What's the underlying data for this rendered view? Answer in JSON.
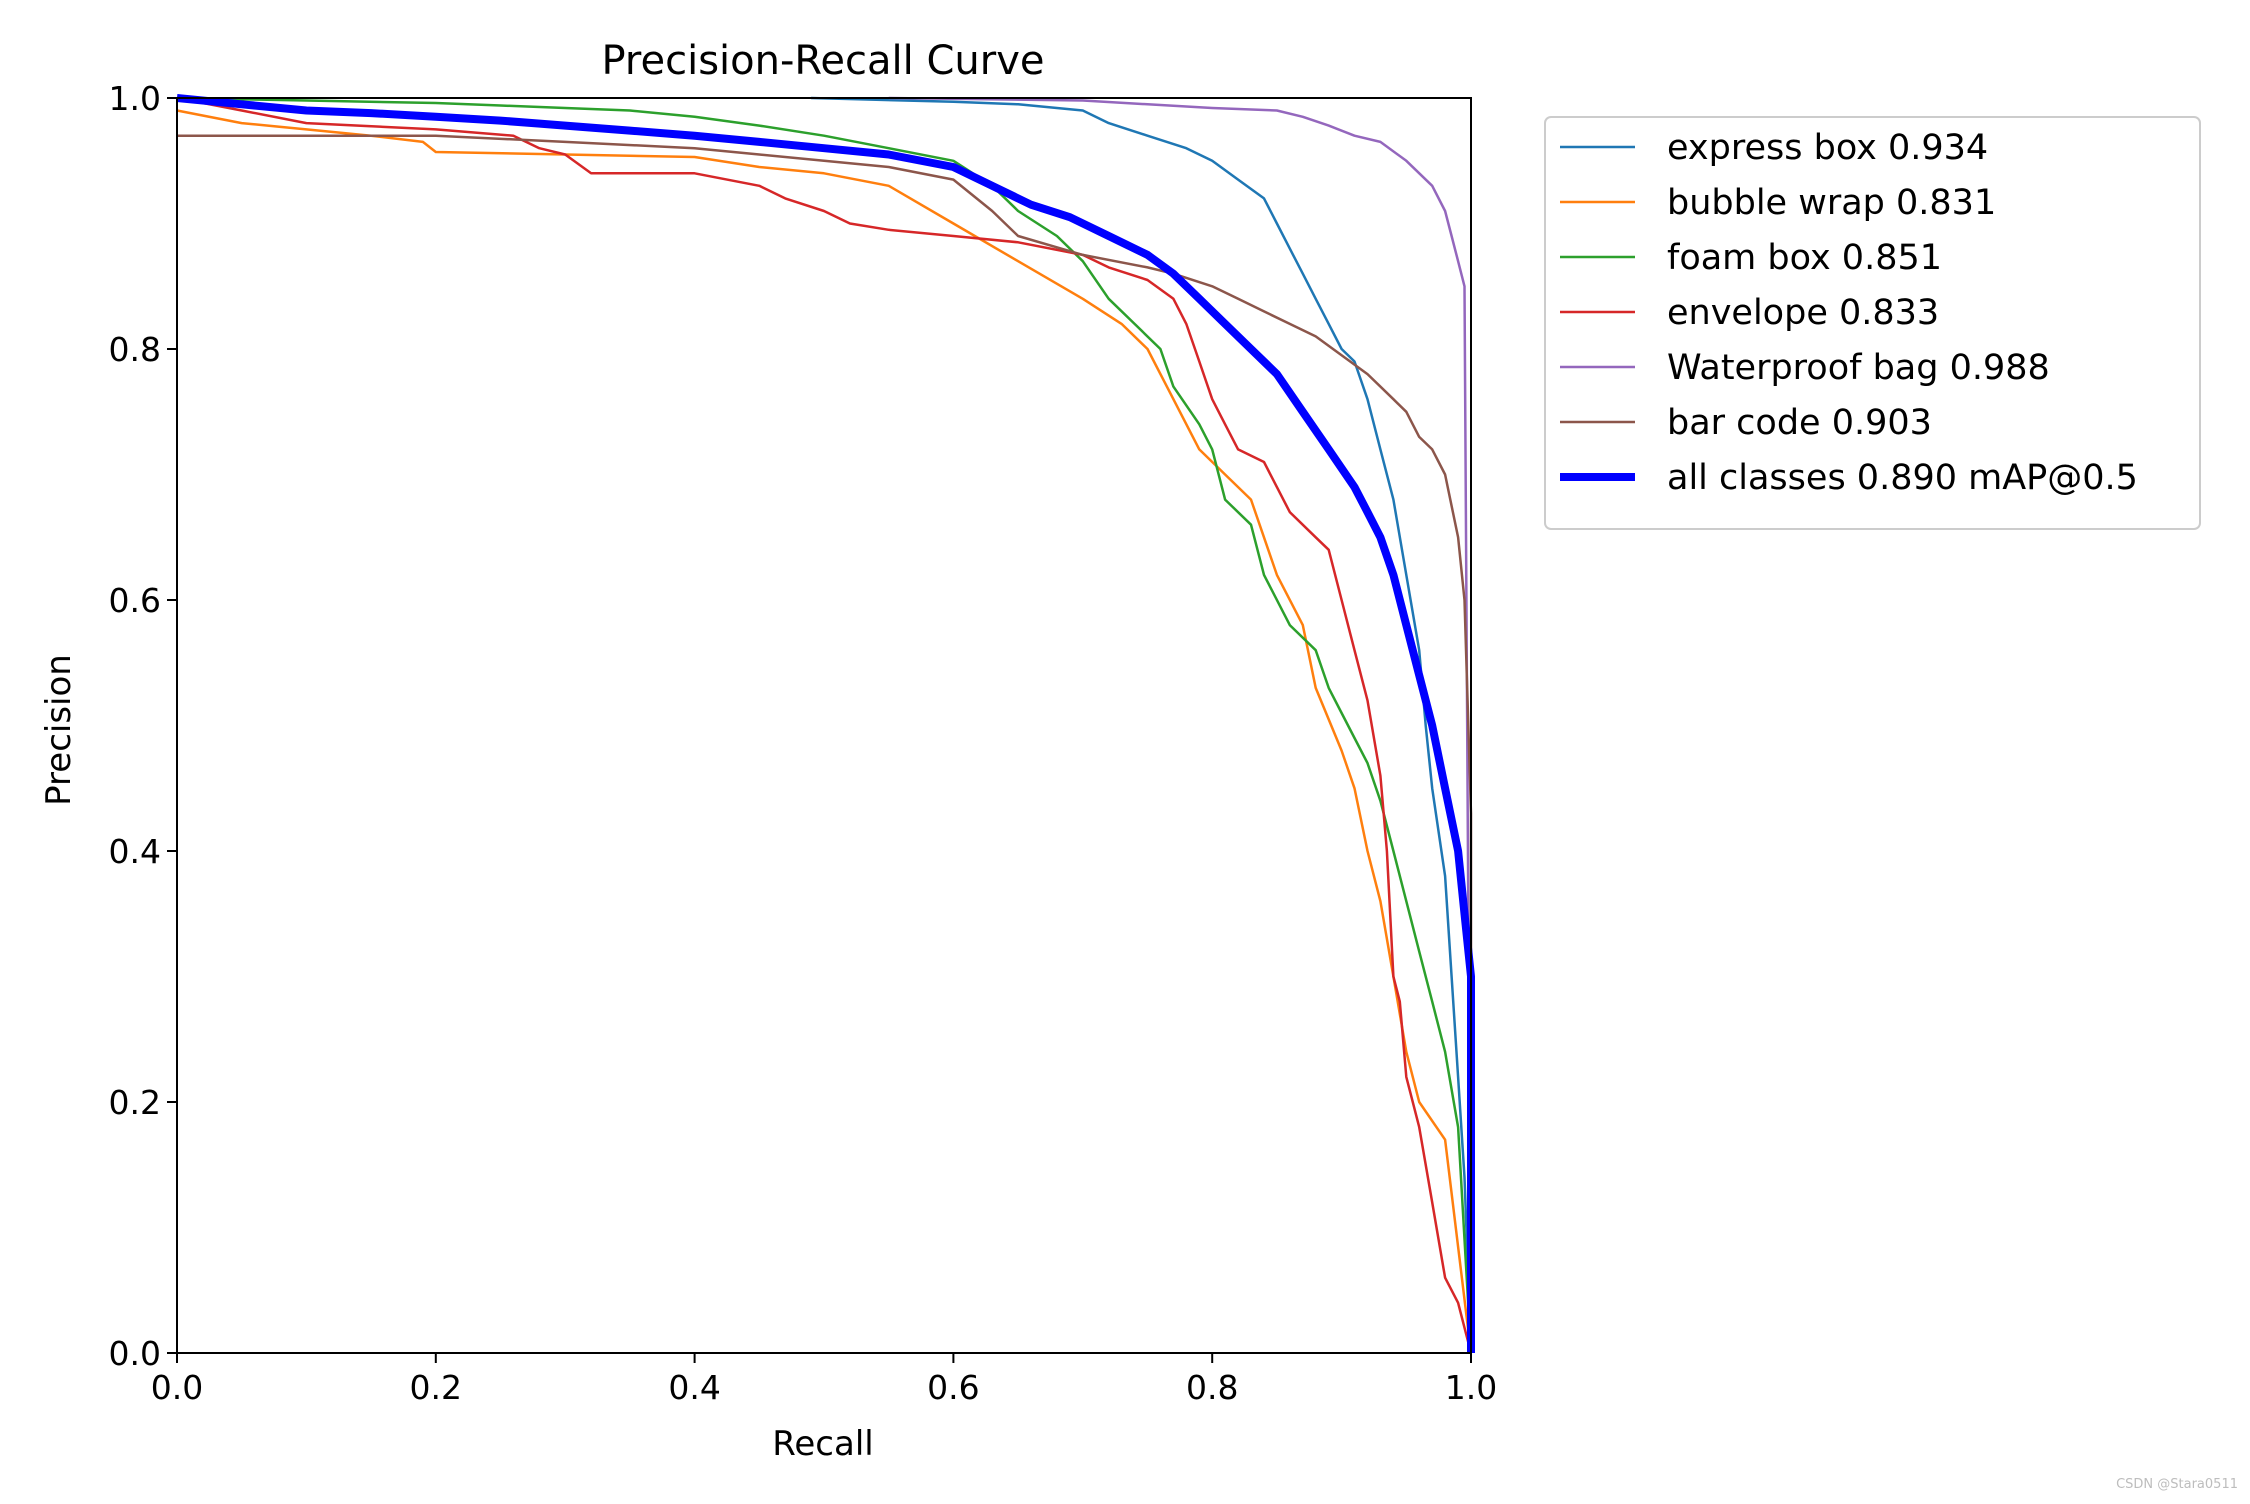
{
  "watermark": "CSDN @Stara0511",
  "chart_data": {
    "type": "line",
    "title": "Precision-Recall Curve",
    "xlabel": "Recall",
    "ylabel": "Precision",
    "xlim": [
      0,
      1
    ],
    "ylim": [
      0,
      1
    ],
    "xticks": [
      "0.0",
      "0.2",
      "0.4",
      "0.6",
      "0.8",
      "1.0"
    ],
    "yticks": [
      "0.0",
      "0.2",
      "0.4",
      "0.6",
      "0.8",
      "1.0"
    ],
    "grid": false,
    "legend_position": "outside-upper-right",
    "series": [
      {
        "name": "express box 0.934",
        "color": "#1f77b4",
        "width": "thin",
        "points": [
          [
            0.49,
            1.0
          ],
          [
            0.6,
            0.997
          ],
          [
            0.65,
            0.995
          ],
          [
            0.7,
            0.99
          ],
          [
            0.72,
            0.98
          ],
          [
            0.75,
            0.97
          ],
          [
            0.78,
            0.96
          ],
          [
            0.8,
            0.95
          ],
          [
            0.82,
            0.935
          ],
          [
            0.84,
            0.92
          ],
          [
            0.85,
            0.9
          ],
          [
            0.86,
            0.88
          ],
          [
            0.87,
            0.86
          ],
          [
            0.88,
            0.84
          ],
          [
            0.89,
            0.82
          ],
          [
            0.9,
            0.8
          ],
          [
            0.91,
            0.79
          ],
          [
            0.92,
            0.76
          ],
          [
            0.93,
            0.72
          ],
          [
            0.94,
            0.68
          ],
          [
            0.95,
            0.62
          ],
          [
            0.96,
            0.56
          ],
          [
            0.965,
            0.5
          ],
          [
            0.97,
            0.45
          ],
          [
            0.98,
            0.38
          ],
          [
            0.985,
            0.3
          ],
          [
            0.99,
            0.22
          ],
          [
            0.995,
            0.14
          ],
          [
            1.0,
            0.0
          ]
        ]
      },
      {
        "name": "bubble wrap 0.831",
        "color": "#ff7f0e",
        "width": "thin",
        "points": [
          [
            0.0,
            0.99
          ],
          [
            0.05,
            0.98
          ],
          [
            0.1,
            0.975
          ],
          [
            0.15,
            0.97
          ],
          [
            0.19,
            0.965
          ],
          [
            0.2,
            0.957
          ],
          [
            0.3,
            0.955
          ],
          [
            0.4,
            0.953
          ],
          [
            0.45,
            0.945
          ],
          [
            0.5,
            0.94
          ],
          [
            0.55,
            0.93
          ],
          [
            0.6,
            0.9
          ],
          [
            0.65,
            0.87
          ],
          [
            0.7,
            0.84
          ],
          [
            0.73,
            0.82
          ],
          [
            0.75,
            0.8
          ],
          [
            0.77,
            0.76
          ],
          [
            0.79,
            0.72
          ],
          [
            0.81,
            0.7
          ],
          [
            0.83,
            0.68
          ],
          [
            0.85,
            0.62
          ],
          [
            0.87,
            0.58
          ],
          [
            0.88,
            0.53
          ],
          [
            0.9,
            0.48
          ],
          [
            0.91,
            0.45
          ],
          [
            0.92,
            0.4
          ],
          [
            0.93,
            0.36
          ],
          [
            0.94,
            0.3
          ],
          [
            0.95,
            0.24
          ],
          [
            0.96,
            0.2
          ],
          [
            0.98,
            0.17
          ],
          [
            1.0,
            0.0
          ]
        ]
      },
      {
        "name": "foam box 0.851",
        "color": "#2ca02c",
        "width": "thin",
        "points": [
          [
            0.0,
            1.0
          ],
          [
            0.1,
            0.998
          ],
          [
            0.2,
            0.996
          ],
          [
            0.25,
            0.994
          ],
          [
            0.3,
            0.992
          ],
          [
            0.35,
            0.99
          ],
          [
            0.4,
            0.985
          ],
          [
            0.45,
            0.978
          ],
          [
            0.5,
            0.97
          ],
          [
            0.55,
            0.96
          ],
          [
            0.6,
            0.95
          ],
          [
            0.63,
            0.93
          ],
          [
            0.65,
            0.91
          ],
          [
            0.68,
            0.89
          ],
          [
            0.7,
            0.87
          ],
          [
            0.72,
            0.84
          ],
          [
            0.74,
            0.82
          ],
          [
            0.76,
            0.8
          ],
          [
            0.77,
            0.77
          ],
          [
            0.79,
            0.74
          ],
          [
            0.8,
            0.72
          ],
          [
            0.81,
            0.68
          ],
          [
            0.83,
            0.66
          ],
          [
            0.84,
            0.62
          ],
          [
            0.86,
            0.58
          ],
          [
            0.88,
            0.56
          ],
          [
            0.89,
            0.53
          ],
          [
            0.9,
            0.51
          ],
          [
            0.91,
            0.49
          ],
          [
            0.92,
            0.47
          ],
          [
            0.93,
            0.44
          ],
          [
            0.94,
            0.4
          ],
          [
            0.95,
            0.36
          ],
          [
            0.96,
            0.32
          ],
          [
            0.97,
            0.28
          ],
          [
            0.98,
            0.24
          ],
          [
            0.99,
            0.18
          ],
          [
            1.0,
            0.0
          ]
        ]
      },
      {
        "name": "envelope 0.833",
        "color": "#d62728",
        "width": "thin",
        "points": [
          [
            0.0,
            1.0
          ],
          [
            0.05,
            0.99
          ],
          [
            0.1,
            0.98
          ],
          [
            0.2,
            0.975
          ],
          [
            0.26,
            0.97
          ],
          [
            0.28,
            0.96
          ],
          [
            0.3,
            0.955
          ],
          [
            0.32,
            0.94
          ],
          [
            0.4,
            0.94
          ],
          [
            0.45,
            0.93
          ],
          [
            0.47,
            0.92
          ],
          [
            0.5,
            0.91
          ],
          [
            0.52,
            0.9
          ],
          [
            0.55,
            0.895
          ],
          [
            0.6,
            0.89
          ],
          [
            0.65,
            0.885
          ],
          [
            0.7,
            0.875
          ],
          [
            0.72,
            0.865
          ],
          [
            0.75,
            0.855
          ],
          [
            0.77,
            0.84
          ],
          [
            0.78,
            0.82
          ],
          [
            0.79,
            0.79
          ],
          [
            0.8,
            0.76
          ],
          [
            0.81,
            0.74
          ],
          [
            0.82,
            0.72
          ],
          [
            0.84,
            0.71
          ],
          [
            0.85,
            0.69
          ],
          [
            0.86,
            0.67
          ],
          [
            0.88,
            0.65
          ],
          [
            0.89,
            0.64
          ],
          [
            0.9,
            0.6
          ],
          [
            0.91,
            0.56
          ],
          [
            0.92,
            0.52
          ],
          [
            0.93,
            0.46
          ],
          [
            0.935,
            0.4
          ],
          [
            0.94,
            0.3
          ],
          [
            0.945,
            0.28
          ],
          [
            0.95,
            0.22
          ],
          [
            0.96,
            0.18
          ],
          [
            0.97,
            0.12
          ],
          [
            0.98,
            0.06
          ],
          [
            0.99,
            0.04
          ],
          [
            1.0,
            0.0
          ]
        ]
      },
      {
        "name": "Waterproof bag 0.988",
        "color": "#9467bd",
        "width": "thin",
        "points": [
          [
            0.55,
            1.0
          ],
          [
            0.7,
            0.998
          ],
          [
            0.75,
            0.995
          ],
          [
            0.8,
            0.992
          ],
          [
            0.85,
            0.99
          ],
          [
            0.87,
            0.985
          ],
          [
            0.89,
            0.978
          ],
          [
            0.91,
            0.97
          ],
          [
            0.93,
            0.965
          ],
          [
            0.95,
            0.95
          ],
          [
            0.97,
            0.93
          ],
          [
            0.98,
            0.91
          ],
          [
            0.985,
            0.89
          ],
          [
            0.99,
            0.87
          ],
          [
            0.995,
            0.85
          ],
          [
            1.0,
            0.0
          ]
        ]
      },
      {
        "name": "bar code 0.903",
        "color": "#8c564b",
        "width": "thin",
        "points": [
          [
            0.0,
            0.97
          ],
          [
            0.1,
            0.97
          ],
          [
            0.2,
            0.97
          ],
          [
            0.3,
            0.965
          ],
          [
            0.4,
            0.96
          ],
          [
            0.45,
            0.955
          ],
          [
            0.5,
            0.95
          ],
          [
            0.55,
            0.945
          ],
          [
            0.6,
            0.935
          ],
          [
            0.63,
            0.91
          ],
          [
            0.65,
            0.89
          ],
          [
            0.7,
            0.875
          ],
          [
            0.75,
            0.865
          ],
          [
            0.77,
            0.86
          ],
          [
            0.8,
            0.85
          ],
          [
            0.82,
            0.84
          ],
          [
            0.84,
            0.83
          ],
          [
            0.86,
            0.82
          ],
          [
            0.88,
            0.81
          ],
          [
            0.9,
            0.795
          ],
          [
            0.92,
            0.78
          ],
          [
            0.94,
            0.76
          ],
          [
            0.95,
            0.75
          ],
          [
            0.96,
            0.73
          ],
          [
            0.97,
            0.72
          ],
          [
            0.98,
            0.7
          ],
          [
            0.99,
            0.65
          ],
          [
            0.995,
            0.6
          ],
          [
            1.0,
            0.43
          ],
          [
            1.0,
            0.0
          ]
        ]
      },
      {
        "name": "all classes 0.890 mAP@0.5",
        "color": "#0000ff",
        "width": "thick",
        "points": [
          [
            0.0,
            1.0
          ],
          [
            0.05,
            0.995
          ],
          [
            0.1,
            0.99
          ],
          [
            0.15,
            0.988
          ],
          [
            0.2,
            0.985
          ],
          [
            0.25,
            0.982
          ],
          [
            0.3,
            0.978
          ],
          [
            0.35,
            0.974
          ],
          [
            0.4,
            0.97
          ],
          [
            0.45,
            0.965
          ],
          [
            0.5,
            0.96
          ],
          [
            0.55,
            0.955
          ],
          [
            0.6,
            0.945
          ],
          [
            0.63,
            0.93
          ],
          [
            0.66,
            0.915
          ],
          [
            0.69,
            0.905
          ],
          [
            0.72,
            0.89
          ],
          [
            0.75,
            0.875
          ],
          [
            0.77,
            0.86
          ],
          [
            0.79,
            0.84
          ],
          [
            0.81,
            0.82
          ],
          [
            0.83,
            0.8
          ],
          [
            0.85,
            0.78
          ],
          [
            0.87,
            0.75
          ],
          [
            0.89,
            0.72
          ],
          [
            0.91,
            0.69
          ],
          [
            0.92,
            0.67
          ],
          [
            0.93,
            0.65
          ],
          [
            0.94,
            0.62
          ],
          [
            0.95,
            0.58
          ],
          [
            0.96,
            0.54
          ],
          [
            0.97,
            0.5
          ],
          [
            0.98,
            0.45
          ],
          [
            0.99,
            0.4
          ],
          [
            0.995,
            0.35
          ],
          [
            1.0,
            0.3
          ],
          [
            1.0,
            0.0
          ]
        ]
      }
    ]
  }
}
